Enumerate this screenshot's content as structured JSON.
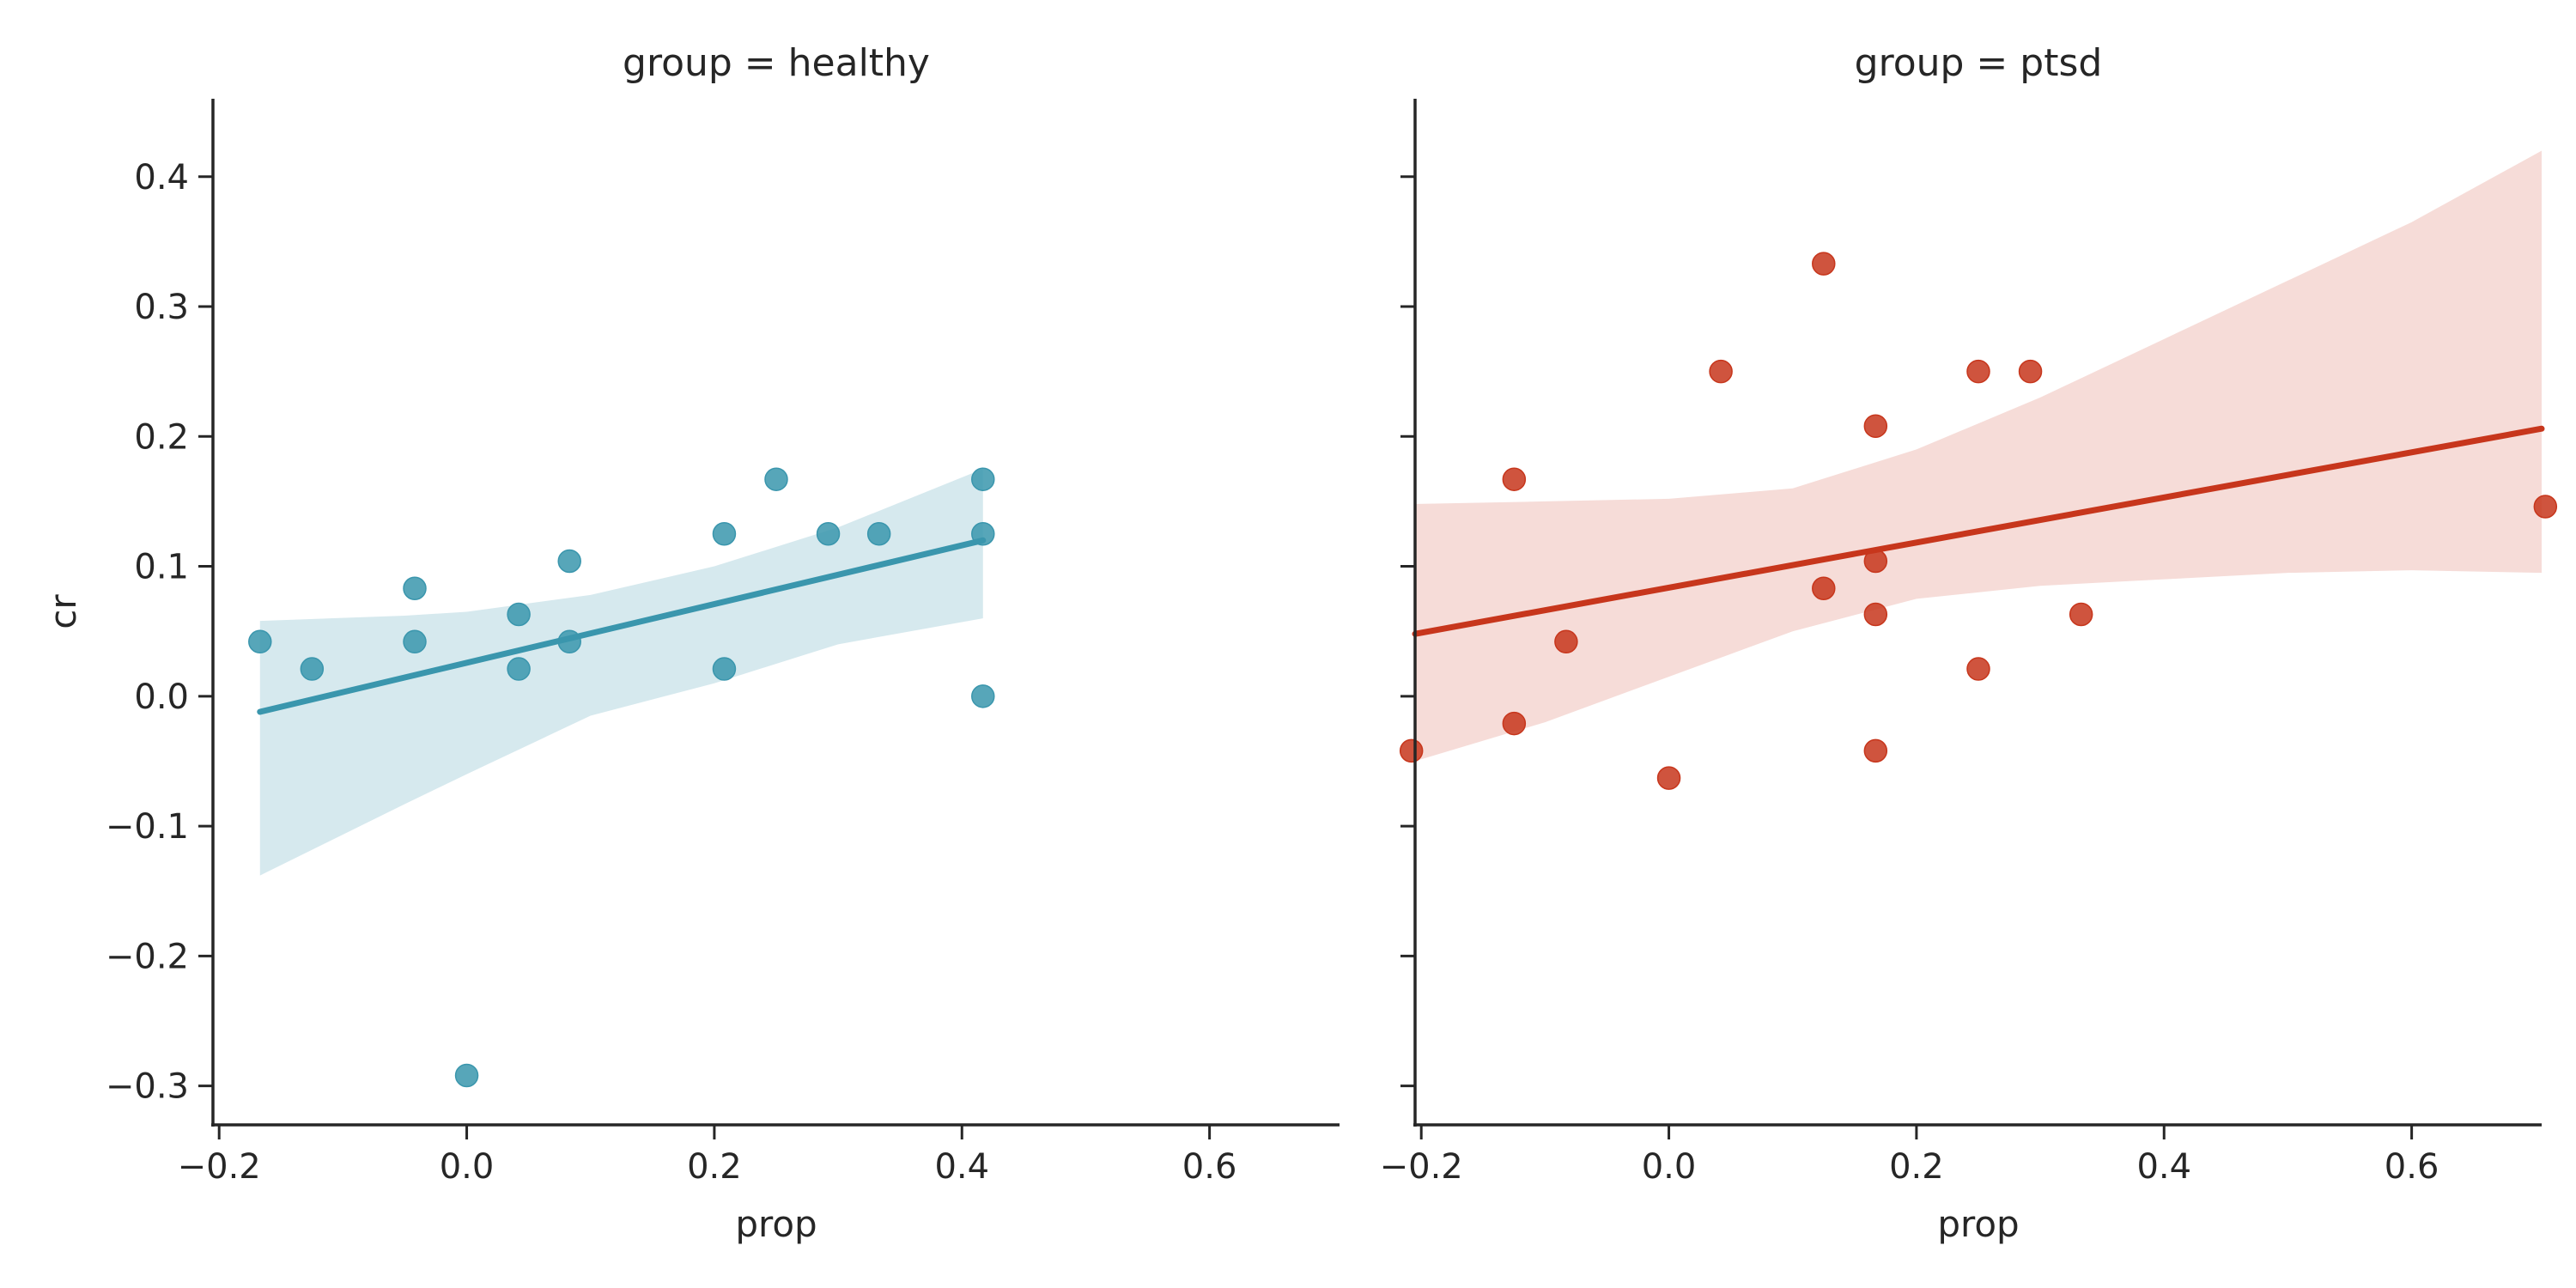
{
  "chart_data": {
    "type": "scatter",
    "ylabel": "cr",
    "ylim": [
      -0.33,
      0.46
    ],
    "yticks": [
      -0.3,
      -0.2,
      -0.1,
      0.0,
      0.1,
      0.2,
      0.3,
      0.4
    ],
    "ytick_labels": [
      "−0.3",
      "−0.2",
      "−0.1",
      "0.0",
      "0.1",
      "0.2",
      "0.3",
      "0.4"
    ],
    "xticks": [
      -0.2,
      0.0,
      0.2,
      0.4,
      0.6
    ],
    "xtick_labels": [
      "−0.2",
      "0.0",
      "0.2",
      "0.4",
      "0.6"
    ],
    "grid": false,
    "panels": [
      {
        "title": "group = healthy",
        "xlabel": "prop",
        "xlim": [
          -0.205,
          0.705
        ],
        "color": "#3a96ad",
        "band_color": "#d6e9ee",
        "points": [
          [
            -0.167,
            0.042
          ],
          [
            -0.125,
            0.021
          ],
          [
            -0.042,
            0.083
          ],
          [
            -0.042,
            0.042
          ],
          [
            0.0,
            -0.292
          ],
          [
            0.042,
            0.063
          ],
          [
            0.042,
            0.021
          ],
          [
            0.083,
            0.104
          ],
          [
            0.083,
            0.042
          ],
          [
            0.208,
            0.125
          ],
          [
            0.208,
            0.021
          ],
          [
            0.25,
            0.167
          ],
          [
            0.292,
            0.125
          ],
          [
            0.333,
            0.125
          ],
          [
            0.417,
            0.167
          ],
          [
            0.417,
            0.125
          ],
          [
            0.417,
            0.0
          ]
        ],
        "fit": {
          "x": [
            -0.167,
            0.417
          ],
          "y": [
            -0.012,
            0.12
          ]
        },
        "ci": {
          "x": [
            -0.167,
            -0.05,
            0.0,
            0.1,
            0.2,
            0.3,
            0.417
          ],
          "lower": [
            -0.138,
            -0.083,
            -0.06,
            -0.015,
            0.01,
            0.04,
            0.06
          ],
          "upper": [
            0.058,
            0.062,
            0.065,
            0.078,
            0.1,
            0.13,
            0.175
          ]
        }
      },
      {
        "title": "group = ptsd",
        "xlabel": "prop",
        "xlim": [
          -0.205,
          0.705
        ],
        "color": "#c7361c",
        "band_color": "#f6dcd8",
        "points": [
          [
            -0.208,
            -0.042
          ],
          [
            -0.125,
            0.167
          ],
          [
            -0.125,
            -0.021
          ],
          [
            -0.083,
            0.042
          ],
          [
            0.0,
            -0.063
          ],
          [
            0.042,
            0.25
          ],
          [
            0.125,
            0.333
          ],
          [
            0.125,
            0.083
          ],
          [
            0.167,
            0.208
          ],
          [
            0.167,
            0.104
          ],
          [
            0.167,
            0.063
          ],
          [
            0.167,
            -0.042
          ],
          [
            0.25,
            0.25
          ],
          [
            0.25,
            0.021
          ],
          [
            0.292,
            0.25
          ],
          [
            0.333,
            0.063
          ],
          [
            0.708,
            0.146
          ]
        ],
        "fit": {
          "x": [
            -0.205,
            0.705
          ],
          "y": [
            0.048,
            0.206
          ]
        },
        "ci": {
          "x": [
            -0.205,
            -0.1,
            0.0,
            0.1,
            0.2,
            0.3,
            0.4,
            0.5,
            0.6,
            0.705
          ],
          "lower": [
            -0.05,
            -0.02,
            0.015,
            0.05,
            0.075,
            0.085,
            0.09,
            0.095,
            0.097,
            0.095
          ],
          "upper": [
            0.148,
            0.15,
            0.152,
            0.16,
            0.19,
            0.23,
            0.275,
            0.32,
            0.365,
            0.42
          ]
        }
      }
    ]
  }
}
